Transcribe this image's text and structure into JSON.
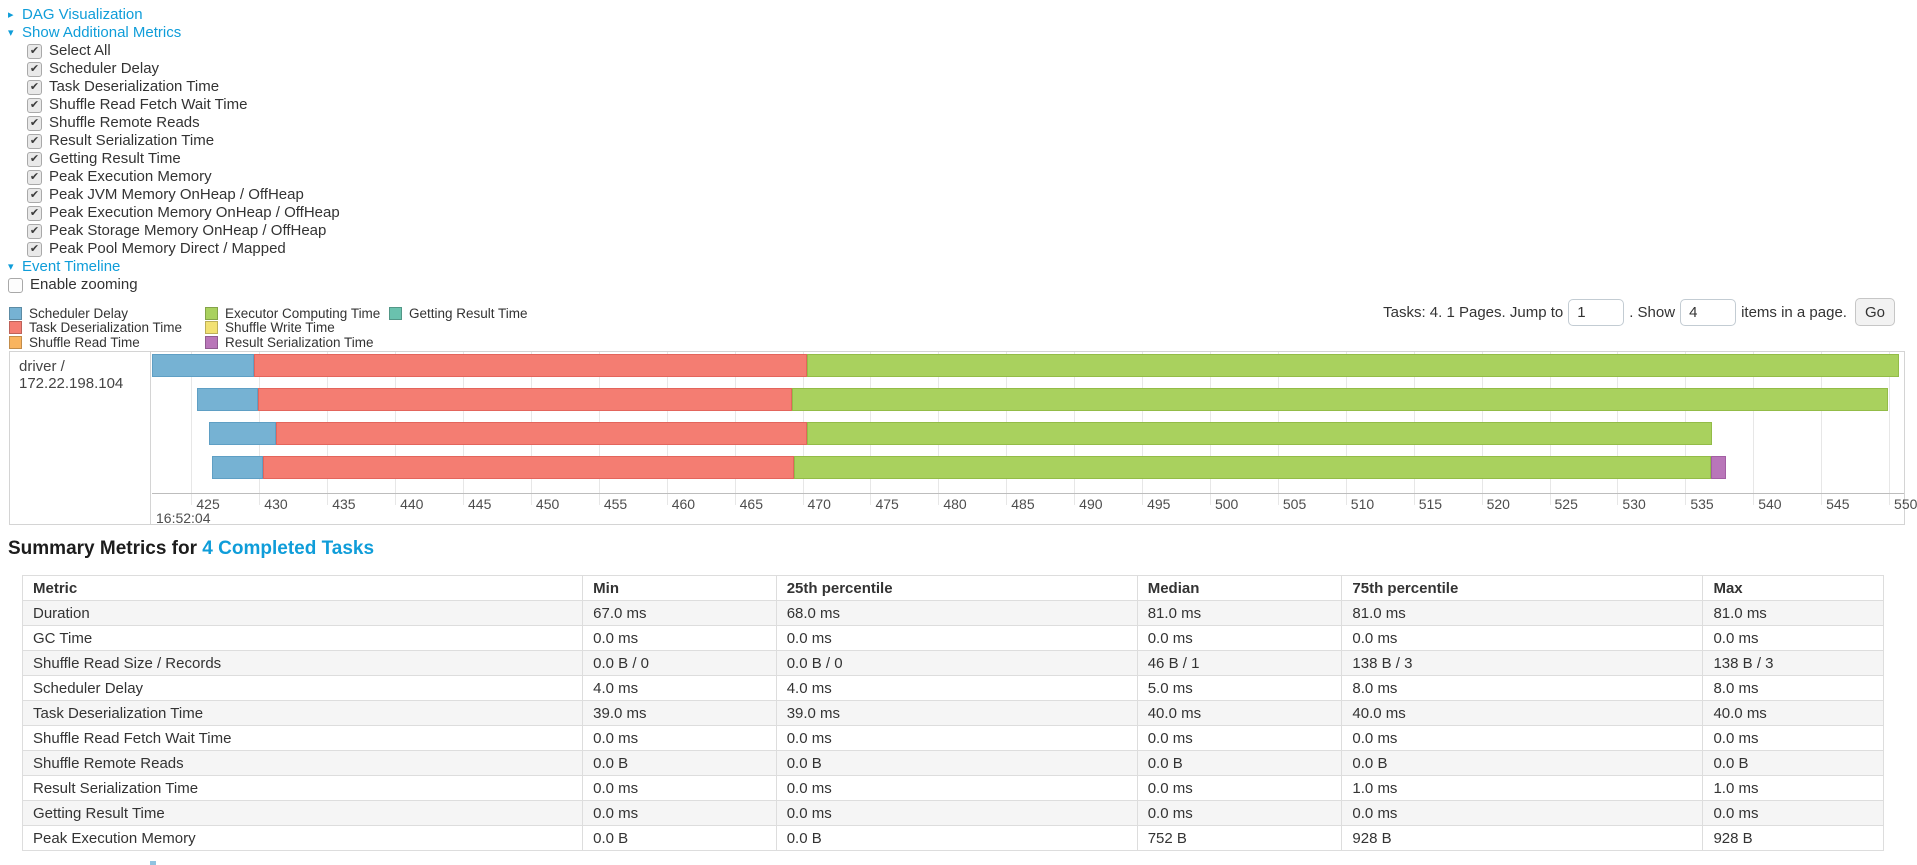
{
  "links": {
    "dag": "DAG Visualization",
    "metrics": "Show Additional Metrics",
    "timeline": "Event Timeline"
  },
  "additional_metrics": [
    {
      "label": "Select All",
      "checked": true
    },
    {
      "label": "Scheduler Delay",
      "checked": true
    },
    {
      "label": "Task Deserialization Time",
      "checked": true
    },
    {
      "label": "Shuffle Read Fetch Wait Time",
      "checked": true
    },
    {
      "label": "Shuffle Remote Reads",
      "checked": true
    },
    {
      "label": "Result Serialization Time",
      "checked": true
    },
    {
      "label": "Getting Result Time",
      "checked": true
    },
    {
      "label": "Peak Execution Memory",
      "checked": true
    },
    {
      "label": "Peak JVM Memory OnHeap / OffHeap",
      "checked": true
    },
    {
      "label": "Peak Execution Memory OnHeap / OffHeap",
      "checked": true
    },
    {
      "label": "Peak Storage Memory OnHeap / OffHeap",
      "checked": true
    },
    {
      "label": "Peak Pool Memory Direct / Mapped",
      "checked": true
    }
  ],
  "enable_zooming": {
    "label": "Enable zooming",
    "checked": false
  },
  "pagination": {
    "prefix": "Tasks: 4. 1 Pages. Jump to",
    "jump_value": "1",
    "mid": ". Show",
    "show_value": "4",
    "suffix": "items in a page.",
    "go_label": "Go"
  },
  "chart_data": {
    "type": "timeline",
    "title": "Event Timeline",
    "groups": [
      "driver / 172.22.198.104"
    ],
    "axis": {
      "window_start": 422.1,
      "window_end": 551.1,
      "tick_min": 425,
      "tick_max": 550,
      "tick_step": 5,
      "major_time_label": "16:52:04"
    },
    "legend": [
      [
        {
          "label": "Scheduler Delay",
          "color": "#76B2D3",
          "border": "#5F9FC4"
        },
        {
          "label": "Task Deserialization Time",
          "color": "#F47D72",
          "border": "#E3655C"
        },
        {
          "label": "Shuffle Read Time",
          "color": "#F9B45F",
          "border": "#E89D45"
        }
      ],
      [
        {
          "label": "Executor Computing Time",
          "color": "#A9D15E",
          "border": "#93BC48"
        },
        {
          "label": "Shuffle Write Time",
          "color": "#F2E173",
          "border": "#DCC95A"
        },
        {
          "label": "Result Serialization Time",
          "color": "#B976B9",
          "border": "#A35FA3"
        }
      ],
      [
        {
          "label": "Getting Result Time",
          "color": "#6AC2AE",
          "border": "#54AB97"
        }
      ]
    ],
    "tasks": [
      {
        "segments": [
          {
            "metric": "Scheduler Delay",
            "start": 422.1,
            "end": 429.6
          },
          {
            "metric": "Task Deserialization Time",
            "start": 429.6,
            "end": 470.3
          },
          {
            "metric": "Executor Computing Time",
            "start": 470.3,
            "end": 550.7
          }
        ]
      },
      {
        "segments": [
          {
            "metric": "Scheduler Delay",
            "start": 425.4,
            "end": 429.9
          },
          {
            "metric": "Task Deserialization Time",
            "start": 429.9,
            "end": 469.2
          },
          {
            "metric": "Executor Computing Time",
            "start": 469.2,
            "end": 549.9
          }
        ]
      },
      {
        "segments": [
          {
            "metric": "Scheduler Delay",
            "start": 426.3,
            "end": 431.2
          },
          {
            "metric": "Task Deserialization Time",
            "start": 431.2,
            "end": 470.3
          },
          {
            "metric": "Executor Computing Time",
            "start": 470.3,
            "end": 537.0
          }
        ]
      },
      {
        "segments": [
          {
            "metric": "Scheduler Delay",
            "start": 426.5,
            "end": 430.3
          },
          {
            "metric": "Task Deserialization Time",
            "start": 430.3,
            "end": 469.4
          },
          {
            "metric": "Executor Computing Time",
            "start": 469.4,
            "end": 536.9
          },
          {
            "metric": "Result Serialization Time",
            "start": 536.9,
            "end": 538.0
          }
        ]
      }
    ]
  },
  "summary": {
    "title_prefix": "Summary Metrics for ",
    "title_link": "4 Completed Tasks",
    "headers": [
      "Metric",
      "Min",
      "25th percentile",
      "Median",
      "75th percentile",
      "Max"
    ],
    "rows": [
      [
        "Duration",
        "67.0 ms",
        "68.0 ms",
        "81.0 ms",
        "81.0 ms",
        "81.0 ms"
      ],
      [
        "GC Time",
        "0.0 ms",
        "0.0 ms",
        "0.0 ms",
        "0.0 ms",
        "0.0 ms"
      ],
      [
        "Shuffle Read Size / Records",
        "0.0 B / 0",
        "0.0 B / 0",
        "46 B / 1",
        "138 B / 3",
        "138 B / 3"
      ],
      [
        "Scheduler Delay",
        "4.0 ms",
        "4.0 ms",
        "5.0 ms",
        "8.0 ms",
        "8.0 ms"
      ],
      [
        "Task Deserialization Time",
        "39.0 ms",
        "39.0 ms",
        "40.0 ms",
        "40.0 ms",
        "40.0 ms"
      ],
      [
        "Shuffle Read Fetch Wait Time",
        "0.0 ms",
        "0.0 ms",
        "0.0 ms",
        "0.0 ms",
        "0.0 ms"
      ],
      [
        "Shuffle Remote Reads",
        "0.0 B",
        "0.0 B",
        "0.0 B",
        "0.0 B",
        "0.0 B"
      ],
      [
        "Result Serialization Time",
        "0.0 ms",
        "0.0 ms",
        "0.0 ms",
        "1.0 ms",
        "1.0 ms"
      ],
      [
        "Getting Result Time",
        "0.0 ms",
        "0.0 ms",
        "0.0 ms",
        "0.0 ms",
        "0.0 ms"
      ],
      [
        "Peak Execution Memory",
        "0.0 B",
        "0.0 B",
        "752 B",
        "928 B",
        "928 B"
      ]
    ]
  },
  "colors": {
    "link": "#0f9dd9",
    "grid": "#e7e7e7",
    "chart_border": "#d4d4d4",
    "stripe": "#f5f5f5"
  }
}
